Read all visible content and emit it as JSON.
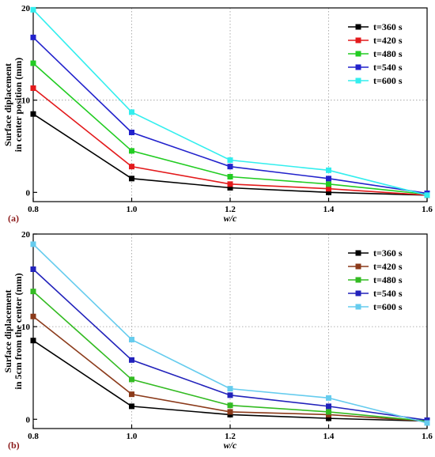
{
  "chart_data": [
    {
      "type": "line",
      "panel_label": "(a)",
      "xlabel": "w/c",
      "ylabel_lines": [
        "Surface diplacement",
        "in center position (mm)"
      ],
      "x": [
        0.8,
        1.0,
        1.2,
        1.4,
        1.6
      ],
      "x_tick_labels": [
        "0.8",
        "1.0",
        "1.2",
        "1.4",
        "1.6"
      ],
      "xlim": [
        0.8,
        1.6
      ],
      "ylim": [
        -1,
        20
      ],
      "y_ticks": [
        0,
        10,
        20
      ],
      "y_tick_labels": [
        "0",
        "10",
        "20"
      ],
      "grid": "dotted at x=1.0,1.2,1.4 and y=10",
      "legend_position": "top-right",
      "series": [
        {
          "name": "t=360 s",
          "color": "#000000",
          "values": [
            8.5,
            1.5,
            0.5,
            0.0,
            -0.3
          ]
        },
        {
          "name": "t=420 s",
          "color": "#e31a1c",
          "values": [
            11.3,
            2.8,
            0.9,
            0.4,
            -0.3
          ]
        },
        {
          "name": "t=480 s",
          "color": "#22cc22",
          "values": [
            14.0,
            4.5,
            1.7,
            0.9,
            -0.2
          ]
        },
        {
          "name": "t=540 s",
          "color": "#2222cc",
          "values": [
            16.8,
            6.5,
            2.8,
            1.5,
            -0.1
          ]
        },
        {
          "name": "t=600 s",
          "color": "#33eeee",
          "values": [
            19.8,
            8.7,
            3.5,
            2.4,
            -0.3
          ]
        }
      ]
    },
    {
      "type": "line",
      "panel_label": "(b)",
      "xlabel": "w/c",
      "ylabel_lines": [
        "Surface diplacement",
        "in 5cm from the center (mm)"
      ],
      "x": [
        0.8,
        1.0,
        1.2,
        1.4,
        1.6
      ],
      "x_tick_labels": [
        "0.8",
        "1.0",
        "1.2",
        "1.4",
        "1.6"
      ],
      "xlim": [
        0.8,
        1.6
      ],
      "ylim": [
        -1,
        20
      ],
      "y_ticks": [
        0,
        10,
        20
      ],
      "y_tick_labels": [
        "0",
        "10",
        "20"
      ],
      "grid": "dotted at x=1.0,1.2,1.4 and y=10",
      "legend_position": "top-right",
      "series": [
        {
          "name": "t=360 s",
          "color": "#000000",
          "values": [
            8.5,
            1.4,
            0.5,
            0.1,
            -0.2
          ]
        },
        {
          "name": "t=420 s",
          "color": "#8b3a1a",
          "values": [
            11.1,
            2.7,
            0.8,
            0.5,
            -0.2
          ]
        },
        {
          "name": "t=480 s",
          "color": "#33bb22",
          "values": [
            13.8,
            4.3,
            1.5,
            0.8,
            -0.2
          ]
        },
        {
          "name": "t=540 s",
          "color": "#2222bb",
          "values": [
            16.2,
            6.4,
            2.6,
            1.4,
            -0.1
          ]
        },
        {
          "name": "t=600 s",
          "color": "#66ccee",
          "values": [
            18.9,
            8.6,
            3.3,
            2.3,
            -0.4
          ]
        }
      ]
    }
  ]
}
